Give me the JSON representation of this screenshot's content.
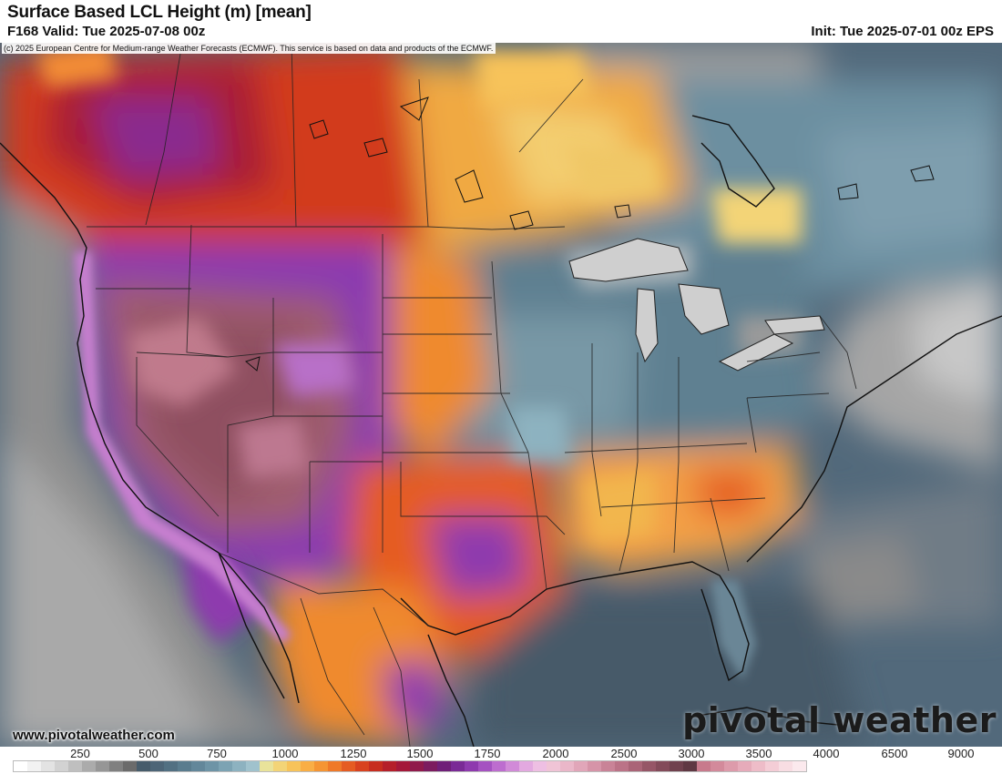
{
  "header": {
    "title": "Surface Based LCL Height (m) [mean]",
    "valid": "F168 Valid: Tue 2025-07-08 00z",
    "init": "Init: Tue 2025-07-01 00z EPS"
  },
  "map": {
    "copyright": "(c) 2025 European Centre for Medium-range Weather Forecasts (ECMWF). This service is based on data and products of the ECMWF.",
    "website": "www.pivotalweather.com",
    "brand": "pivotal weather"
  },
  "colorbar": {
    "labels": [
      "250",
      "500",
      "750",
      "1000",
      "1250",
      "1500",
      "1750",
      "2000",
      "2500",
      "3000",
      "3500",
      "4000",
      "6500",
      "9000"
    ],
    "colors": [
      "#ffffff",
      "#f2f2f2",
      "#e3e3e3",
      "#d2d2d2",
      "#bfbfbf",
      "#ababab",
      "#969696",
      "#808080",
      "#6b6b6b",
      "#475c6b",
      "#4d6577",
      "#527082",
      "#5a7c8e",
      "#63879a",
      "#6e94a6",
      "#7ca3b3",
      "#8db2c0",
      "#a0c2cd",
      "#e9e39a",
      "#f3d477",
      "#f7c35a",
      "#f9ae45",
      "#f59533",
      "#ef7928",
      "#e55c22",
      "#d8421f",
      "#c72d1f",
      "#b51f2a",
      "#a41839",
      "#901a4b",
      "#7c1c5f",
      "#6f1f78",
      "#7a2a96",
      "#8e3aae",
      "#a552c1",
      "#bd6dcf",
      "#d18ad8",
      "#e3a9e0",
      "#eebfe3",
      "#f0c4d6",
      "#eab7c9",
      "#e1a6b9",
      "#d694a8",
      "#c98397",
      "#bb7387",
      "#aa6477",
      "#965667",
      "#834b5a",
      "#70414e",
      "#5f3843",
      "#c87a8c",
      "#d38a9b",
      "#dd9bab",
      "#e6abba",
      "#eebcc8",
      "#f4cdd6",
      "#f8dde3",
      "#fbe9ed"
    ]
  }
}
